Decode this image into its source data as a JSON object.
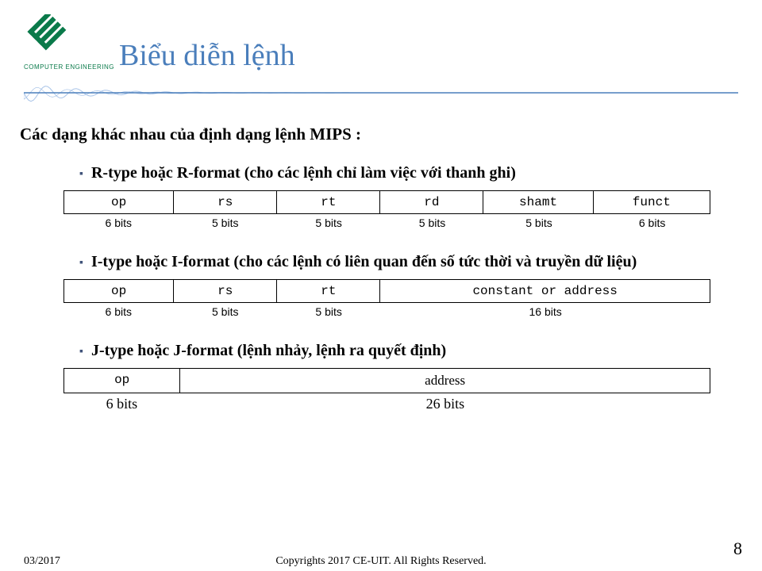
{
  "header": {
    "logo_text": "COMPUTER ENGINEERING",
    "title": "Biểu diễn lệnh"
  },
  "content": {
    "subtitle": "Các dạng khác nhau của định dạng lệnh MIPS :",
    "r_type": {
      "bullet_text": "R-type hoặc R-format (cho các lệnh chỉ làm việc với thanh ghi)",
      "fields": [
        "op",
        "rs",
        "rt",
        "rd",
        "shamt",
        "funct"
      ],
      "bits": [
        "6 bits",
        "5 bits",
        "5 bits",
        "5 bits",
        "5 bits",
        "6 bits"
      ],
      "widths_pct": [
        17,
        16,
        16,
        16,
        17,
        18
      ]
    },
    "i_type": {
      "bullet_text": "I-type hoặc I-format (cho các lệnh có liên quan đến số tức thời và truyền dữ liệu)",
      "fields": [
        "op",
        "rs",
        "rt",
        "constant or address"
      ],
      "bits": [
        "6 bits",
        "5 bits",
        "5 bits",
        "16 bits"
      ],
      "widths_pct": [
        17,
        16,
        16,
        51
      ]
    },
    "j_type": {
      "bullet_text": "J-type hoặc J-format (lệnh nhảy, lệnh ra quyết định)",
      "fields": [
        "op",
        "address"
      ],
      "bits": [
        "6 bits",
        "26 bits"
      ],
      "widths_pct": [
        18,
        82
      ]
    }
  },
  "footer": {
    "date": "03/2017",
    "copyright": "Copyrights 2017 CE-UIT. All Rights Reserved.",
    "page": "8"
  },
  "colors": {
    "title": "#4a7ebb",
    "bullet": "#40537a",
    "logo_green": "#0a7a4a",
    "wave": "#a9c4e8"
  }
}
